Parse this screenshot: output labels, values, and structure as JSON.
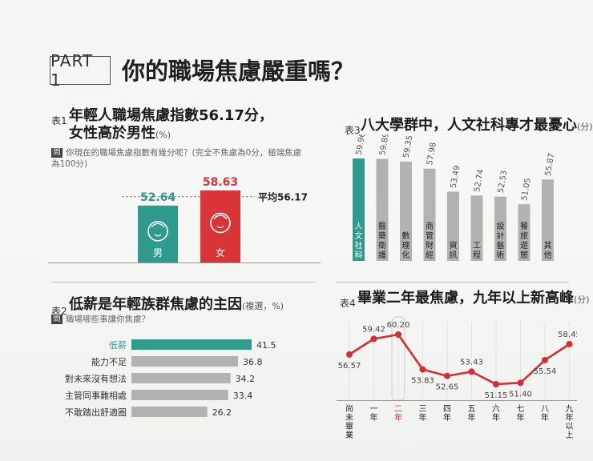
{
  "header": {
    "part_label": "PART 1",
    "title": "你的職場焦慮嚴重嗎？"
  },
  "colors": {
    "teal": "#2e9b8c",
    "red": "#d93438",
    "gray": "#b2b2b2",
    "line_red": "#d62f33"
  },
  "chart1": {
    "tag": "表1",
    "title_line1": "年輕人職場焦慮指數56.17分，",
    "title_line2": "女性高於男性",
    "unit": "(%)",
    "question_mark": "問",
    "question": "你現在的職場焦慮指數有幾分呢？(完全不焦慮為0分，極端焦慮為100分)",
    "avg_label": "平均56.17"
  },
  "chart2": {
    "tag": "表2",
    "title": "低薪是年輕族群焦慮的主因",
    "unit": "(複選，%)",
    "question_mark": "問",
    "question": "職場哪些事讓你焦慮？"
  },
  "chart3": {
    "tag": "表3",
    "title": "八大學群中，人文社科專才最憂心",
    "unit": "(分)"
  },
  "chart4": {
    "tag": "表4",
    "title": "畢業二年最焦慮，九年以上新高峰",
    "unit": "(分)"
  },
  "chart_data": [
    {
      "type": "bar",
      "title": "年輕人職場焦慮指數56.17分，女性高於男性",
      "categories": [
        "男",
        "女"
      ],
      "values": [
        52.64,
        58.63
      ],
      "reference_line": 56.17,
      "colors": [
        "#2e9b8c",
        "#d93438"
      ]
    },
    {
      "type": "bar",
      "orientation": "horizontal",
      "title": "低薪是年輕族群焦慮的主因",
      "categories": [
        "低薪",
        "能力不足",
        "對未來沒有想法",
        "主管同事難相處",
        "不敢踏出舒適圈"
      ],
      "values": [
        41.5,
        36.8,
        34.2,
        33.4,
        26.2
      ]
    },
    {
      "type": "bar",
      "title": "八大學群中，人文社科專才最憂心",
      "categories": [
        "人文社科",
        "醫藥衛護",
        "數理化",
        "商管財經",
        "資訊",
        "工程",
        "設計藝術",
        "餐旅遊憩",
        "其他"
      ],
      "values": [
        59.96,
        59.89,
        59.35,
        57.98,
        53.49,
        52.74,
        52.53,
        51.05,
        55.87
      ]
    },
    {
      "type": "line",
      "title": "畢業二年最焦慮，九年以上新高峰",
      "categories": [
        "尚未畢業",
        "一年",
        "二年",
        "三年",
        "四年",
        "五年",
        "六年",
        "七年",
        "八年",
        "九年以上"
      ],
      "values": [
        56.57,
        59.42,
        60.2,
        53.83,
        52.65,
        53.43,
        51.15,
        51.4,
        55.54,
        58.45
      ],
      "highlight_category": "二年"
    }
  ]
}
